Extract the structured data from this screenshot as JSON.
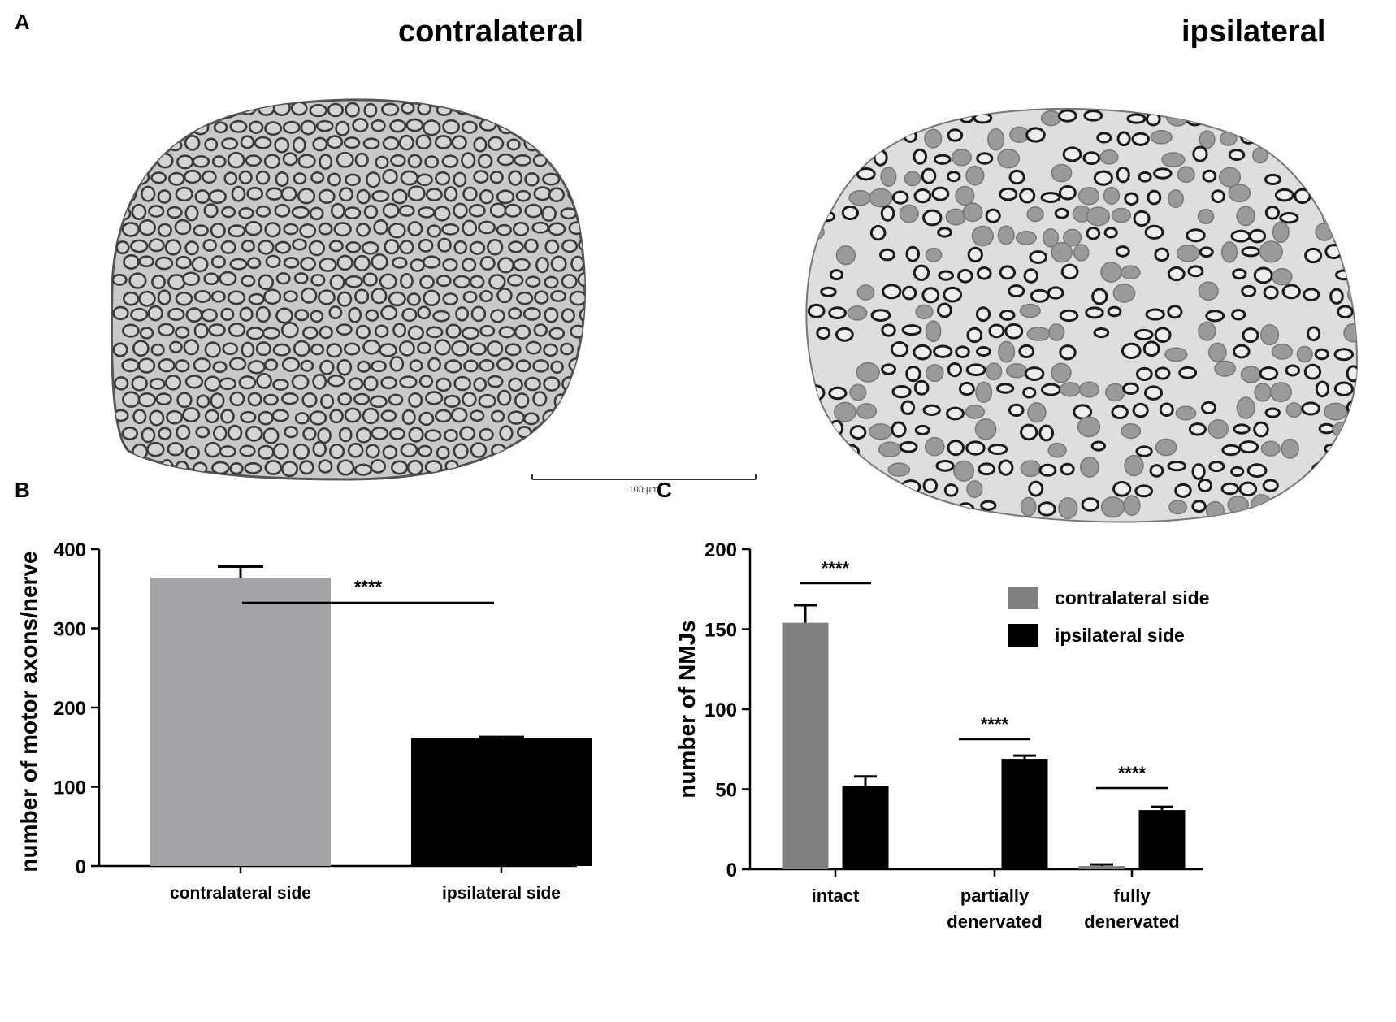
{
  "figure": {
    "panels": {
      "a": "A",
      "b": "B",
      "c": "C"
    },
    "micrographs": [
      {
        "title": "contralateral",
        "image": "nerve cross-section with densely packed intact myelinated axons"
      },
      {
        "title": "ipsilateral",
        "image": "nerve cross-section with sparse, degenerated myelinated axons"
      }
    ],
    "scale_bar": "100 µm"
  },
  "chart_data": [
    {
      "type": "bar",
      "title": "",
      "xlabel": "",
      "ylabel": "number of motor axons/nerve",
      "categories": [
        "contralateral side",
        "ipsilateral side"
      ],
      "values": [
        364,
        161
      ],
      "errors": [
        14,
        2
      ],
      "colors": [
        "#a3a3a8",
        "#000000"
      ],
      "ylim": [
        0,
        400
      ],
      "yticks": [
        0,
        100,
        200,
        300,
        400
      ],
      "significance": [
        {
          "from": 0,
          "to": 1,
          "label": "****"
        }
      ]
    },
    {
      "type": "bar",
      "title": "",
      "xlabel": "",
      "ylabel": "number of NMJs",
      "categories": [
        "intact",
        "partially denervated",
        "fully denervated"
      ],
      "series": [
        {
          "name": "contralateral side",
          "color": "#808080",
          "values": [
            154,
            0,
            2
          ],
          "errors": [
            11,
            0,
            1
          ]
        },
        {
          "name": "ipsilateral side",
          "color": "#000000",
          "values": [
            52,
            69,
            37
          ],
          "errors": [
            6,
            2,
            2
          ]
        }
      ],
      "ylim": [
        0,
        200
      ],
      "yticks": [
        0,
        50,
        100,
        150,
        200
      ],
      "significance": [
        {
          "category": 0,
          "label": "****"
        },
        {
          "category": 1,
          "label": "****"
        },
        {
          "category": 2,
          "label": "****"
        }
      ],
      "legend": "top-right"
    }
  ]
}
